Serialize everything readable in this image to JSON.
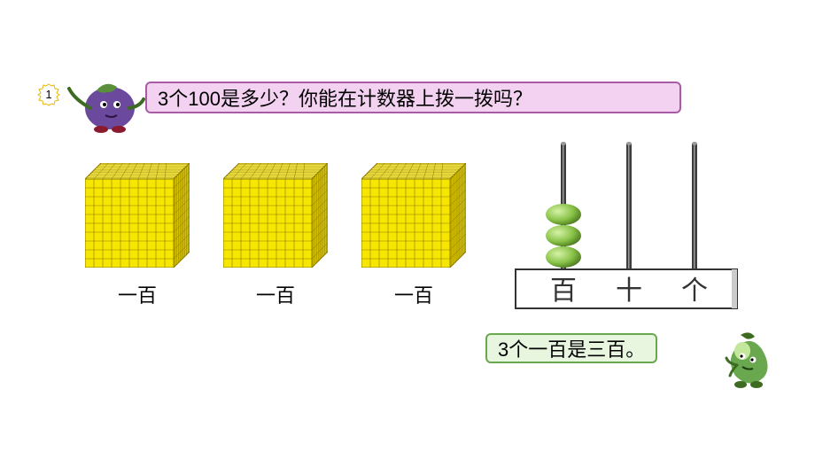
{
  "question": {
    "text": "3个100是多少？你能在计数器上拨一拨吗？",
    "bg_color": "#f3d2f1",
    "border_color": "#a95ca6",
    "text_color": "#000000",
    "badge_number": "1",
    "badge_fill": "#ffffff",
    "badge_stroke": "#e6b800"
  },
  "cubes": {
    "count": 3,
    "label": "一百",
    "face_color": "#f7e600",
    "side_color": "#d8c400",
    "top_color": "#fff04d",
    "line_color": "#8a7a00",
    "grid": 10
  },
  "abacus": {
    "columns": [
      {
        "label": "百",
        "beads": 3
      },
      {
        "label": "十",
        "beads": 0
      },
      {
        "label": "个",
        "beads": 0
      }
    ],
    "rod_color": "#3d3d3d",
    "rod_highlight": "#9a9a9a",
    "bead_fill": "#8bc44a",
    "bead_dark": "#4e7d1f",
    "bead_light": "#d6f2a8",
    "base_fill": "#ffffff",
    "base_stroke": "#333333",
    "label_color": "#333333",
    "label_fontsize": 30
  },
  "answer": {
    "text": "3个一百是三百。",
    "bg_color": "#e8f6e0",
    "border_color": "#6aa84f",
    "text_color": "#000000"
  },
  "characters": {
    "eggplant": {
      "body": "#6b4a9e",
      "cap": "#5a8f3c",
      "arm": "#3d6b22",
      "shoe": "#8a1a2e"
    },
    "pea": {
      "body": "#6aa84f",
      "dark": "#3d6b22",
      "highlight": "#c4e89b"
    }
  }
}
